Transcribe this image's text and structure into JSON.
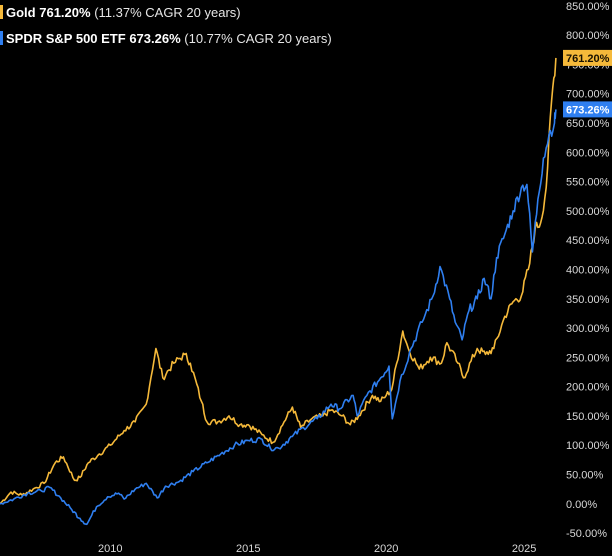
{
  "legend": [
    {
      "name": "Gold",
      "value": "761.20%",
      "detail": "(11.37% CAGR 20 years)",
      "color": "#f5b93a"
    },
    {
      "name": "SPDR S&P 500 ETF",
      "value": "673.26%",
      "detail": "(10.77% CAGR 20 years)",
      "color": "#2f7ff0"
    }
  ],
  "chart_data": {
    "type": "line",
    "x_ticks": [
      2010,
      2015,
      2020,
      2025
    ],
    "x_tick_labels": [
      "2010",
      "2015",
      "2020",
      "2025"
    ],
    "xlim": [
      2006.0,
      2026.3
    ],
    "ylim": [
      -55,
      860
    ],
    "y_ticks": [
      -50,
      0,
      50,
      100,
      150,
      200,
      250,
      300,
      350,
      400,
      450,
      500,
      550,
      600,
      650,
      700,
      750,
      800,
      850
    ],
    "y_tick_labels": [
      "-50.00%",
      "0.00%",
      "50.00%",
      "100.00%",
      "150.00%",
      "200.00%",
      "250.00%",
      "300.00%",
      "350.00%",
      "400.00%",
      "450.00%",
      "500.00%",
      "550.00%",
      "600.00%",
      "650.00%",
      "700.00%",
      "750.00%",
      "800.00%",
      "850.00%"
    ],
    "y_axis_position": "right",
    "grid": false,
    "series": [
      {
        "name": "Gold",
        "color": "#f5b93a",
        "end_label": "761.20%",
        "points": [
          [
            2006.0,
            0
          ],
          [
            2006.4,
            20
          ],
          [
            2006.8,
            15
          ],
          [
            2007.2,
            25
          ],
          [
            2007.6,
            35
          ],
          [
            2008.0,
            70
          ],
          [
            2008.3,
            80
          ],
          [
            2008.7,
            40
          ],
          [
            2008.9,
            45
          ],
          [
            2009.2,
            70
          ],
          [
            2009.6,
            85
          ],
          [
            2010.0,
            100
          ],
          [
            2010.5,
            125
          ],
          [
            2010.9,
            140
          ],
          [
            2011.3,
            170
          ],
          [
            2011.65,
            265
          ],
          [
            2011.9,
            215
          ],
          [
            2012.3,
            240
          ],
          [
            2012.7,
            255
          ],
          [
            2012.9,
            240
          ],
          [
            2013.3,
            175
          ],
          [
            2013.5,
            140
          ],
          [
            2013.9,
            140
          ],
          [
            2014.3,
            150
          ],
          [
            2014.7,
            135
          ],
          [
            2015.0,
            135
          ],
          [
            2015.5,
            118
          ],
          [
            2015.9,
            105
          ],
          [
            2016.3,
            140
          ],
          [
            2016.6,
            165
          ],
          [
            2016.9,
            130
          ],
          [
            2017.3,
            145
          ],
          [
            2017.7,
            150
          ],
          [
            2018.0,
            160
          ],
          [
            2018.4,
            150
          ],
          [
            2018.7,
            135
          ],
          [
            2019.0,
            150
          ],
          [
            2019.5,
            185
          ],
          [
            2019.8,
            175
          ],
          [
            2020.0,
            185
          ],
          [
            2020.2,
            195
          ],
          [
            2020.6,
            295
          ],
          [
            2020.8,
            265
          ],
          [
            2021.2,
            230
          ],
          [
            2021.6,
            250
          ],
          [
            2022.0,
            240
          ],
          [
            2022.2,
            275
          ],
          [
            2022.6,
            240
          ],
          [
            2022.8,
            215
          ],
          [
            2023.3,
            265
          ],
          [
            2023.6,
            255
          ],
          [
            2023.9,
            265
          ],
          [
            2024.3,
            320
          ],
          [
            2024.6,
            345
          ],
          [
            2024.9,
            355
          ],
          [
            2025.2,
            410
          ],
          [
            2025.4,
            470
          ],
          [
            2025.6,
            480
          ],
          [
            2025.8,
            540
          ],
          [
            2026.0,
            690
          ],
          [
            2026.15,
            761.2
          ]
        ]
      },
      {
        "name": "SPDR S&P 500 ETF",
        "color": "#2f7ff0",
        "end_label": "673.26%",
        "points": [
          [
            2006.0,
            0
          ],
          [
            2006.5,
            8
          ],
          [
            2007.0,
            18
          ],
          [
            2007.5,
            22
          ],
          [
            2007.8,
            28
          ],
          [
            2008.2,
            10
          ],
          [
            2008.6,
            -10
          ],
          [
            2008.9,
            -25
          ],
          [
            2009.15,
            -35
          ],
          [
            2009.5,
            -5
          ],
          [
            2009.9,
            12
          ],
          [
            2010.3,
            18
          ],
          [
            2010.5,
            8
          ],
          [
            2010.9,
            25
          ],
          [
            2011.3,
            35
          ],
          [
            2011.7,
            10
          ],
          [
            2012.0,
            30
          ],
          [
            2012.5,
            38
          ],
          [
            2013.0,
            55
          ],
          [
            2013.5,
            70
          ],
          [
            2014.0,
            85
          ],
          [
            2014.5,
            100
          ],
          [
            2015.0,
            108
          ],
          [
            2015.5,
            110
          ],
          [
            2015.8,
            95
          ],
          [
            2016.1,
            95
          ],
          [
            2016.6,
            115
          ],
          [
            2017.0,
            130
          ],
          [
            2017.5,
            145
          ],
          [
            2018.0,
            170
          ],
          [
            2018.3,
            162
          ],
          [
            2018.8,
            185
          ],
          [
            2018.95,
            150
          ],
          [
            2019.3,
            185
          ],
          [
            2019.8,
            215
          ],
          [
            2020.1,
            235
          ],
          [
            2020.22,
            145
          ],
          [
            2020.5,
            210
          ],
          [
            2020.9,
            265
          ],
          [
            2021.3,
            310
          ],
          [
            2021.7,
            355
          ],
          [
            2021.95,
            405
          ],
          [
            2022.3,
            350
          ],
          [
            2022.5,
            310
          ],
          [
            2022.75,
            280
          ],
          [
            2023.0,
            330
          ],
          [
            2023.3,
            350
          ],
          [
            2023.55,
            385
          ],
          [
            2023.8,
            350
          ],
          [
            2024.0,
            420
          ],
          [
            2024.3,
            460
          ],
          [
            2024.6,
            500
          ],
          [
            2024.9,
            540
          ],
          [
            2025.1,
            545
          ],
          [
            2025.3,
            430
          ],
          [
            2025.5,
            520
          ],
          [
            2025.7,
            590
          ],
          [
            2025.9,
            630
          ],
          [
            2026.1,
            650
          ],
          [
            2026.15,
            673.26
          ]
        ]
      }
    ]
  }
}
